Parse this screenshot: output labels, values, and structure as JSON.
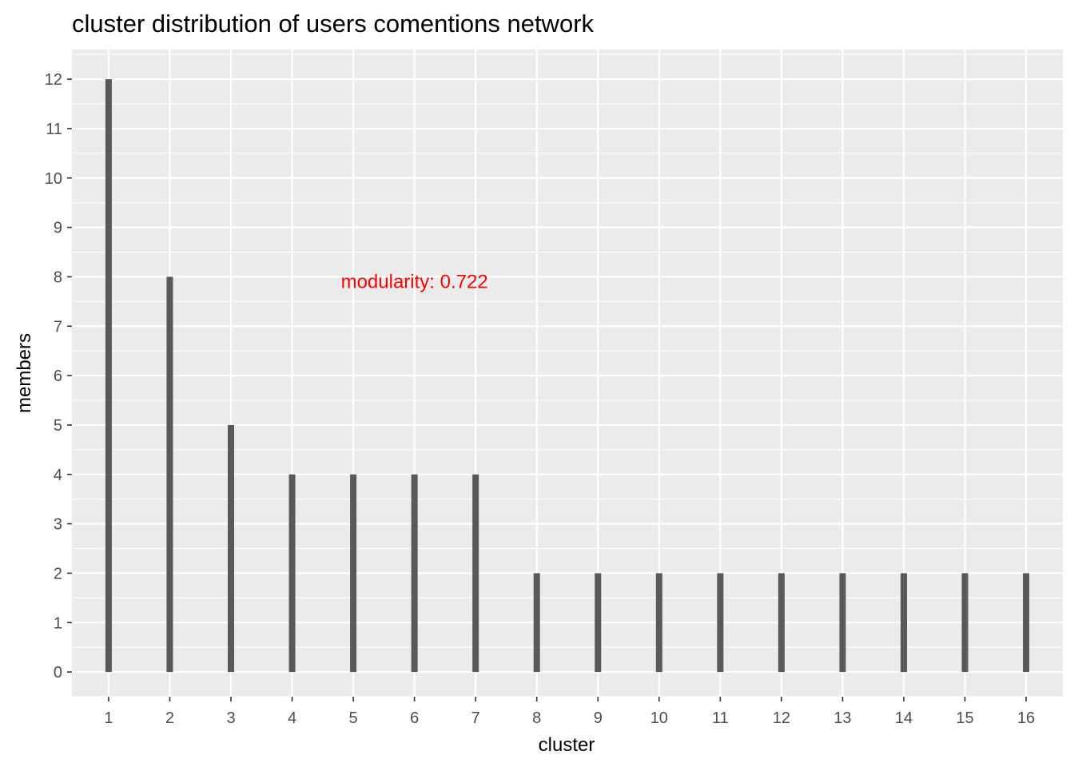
{
  "chart_data": {
    "type": "bar",
    "title": "cluster distribution of users comentions network",
    "xlabel": "cluster",
    "ylabel": "members",
    "categories": [
      "1",
      "2",
      "3",
      "4",
      "5",
      "6",
      "7",
      "8",
      "9",
      "10",
      "11",
      "12",
      "13",
      "14",
      "15",
      "16"
    ],
    "values": [
      12,
      8,
      5,
      4,
      4,
      4,
      4,
      2,
      2,
      2,
      2,
      2,
      2,
      2,
      2,
      2
    ],
    "ylim": [
      -0.5,
      12.6
    ],
    "yticks": [
      0,
      1,
      2,
      3,
      4,
      5,
      6,
      7,
      8,
      9,
      10,
      11,
      12
    ],
    "grid": true,
    "legend": "none",
    "annotation": {
      "text": "modularity: 0.722",
      "x": 6,
      "y": 7.9,
      "color": "#ff0000"
    },
    "colors": {
      "bar": "#595959",
      "panel": "#ebebeb",
      "grid": "#ffffff"
    }
  }
}
